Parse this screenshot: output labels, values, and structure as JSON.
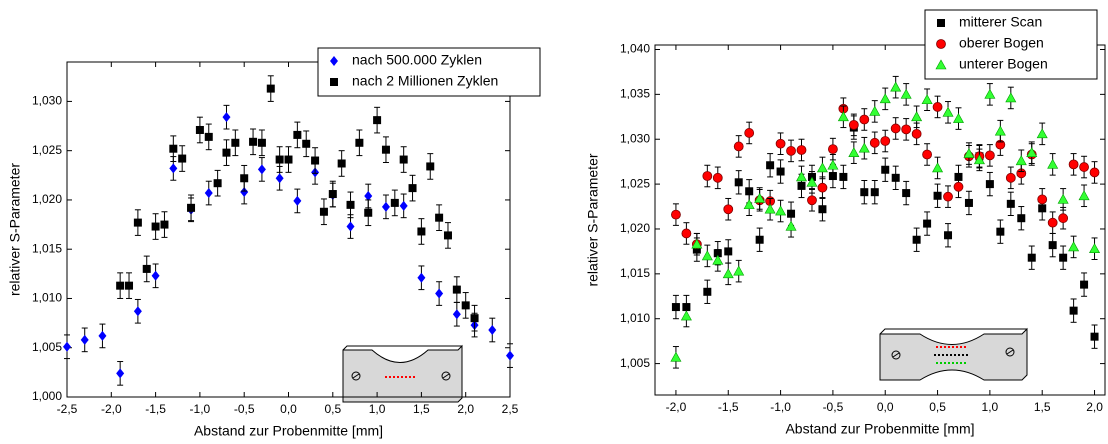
{
  "chart_data": [
    {
      "type": "scatter",
      "xlabel": "Abstand zur Probenmitte [mm]",
      "ylabel": "relativer S-Parameter",
      "xlim": [
        -2.5,
        2.5
      ],
      "ylim": [
        1.0,
        1.034
      ],
      "xticks": [
        {
          "value": -2.5,
          "label": "-2,5"
        },
        {
          "value": -2.0,
          "label": "-2,0"
        },
        {
          "value": -1.5,
          "label": "-1,5"
        },
        {
          "value": -1.0,
          "label": "-1,0"
        },
        {
          "value": -0.5,
          "label": "-0,5"
        },
        {
          "value": 0.0,
          "label": "0,0"
        },
        {
          "value": 0.5,
          "label": "0,5"
        },
        {
          "value": 1.0,
          "label": "1,0"
        },
        {
          "value": 1.5,
          "label": "1,5"
        },
        {
          "value": 2.0,
          "label": "2,0"
        },
        {
          "value": 2.5,
          "label": "2,5"
        }
      ],
      "yticks": [
        {
          "value": 1.0,
          "label": "1,000"
        },
        {
          "value": 1.005,
          "label": "1,005"
        },
        {
          "value": 1.01,
          "label": "1,010"
        },
        {
          "value": 1.015,
          "label": "1,015"
        },
        {
          "value": 1.02,
          "label": "1,020"
        },
        {
          "value": 1.025,
          "label": "1,025"
        },
        {
          "value": 1.03,
          "label": "1,030"
        }
      ],
      "legend": "upper right",
      "series": [
        {
          "name": "nach 500.000 Zyklen",
          "color": "#0000ff",
          "marker": "diamond",
          "error": 0.0012,
          "x": [
            -2.5,
            -2.3,
            -2.1,
            -1.9,
            -1.7,
            -1.5,
            -1.3,
            -1.1,
            -0.9,
            -0.7,
            -0.5,
            -0.3,
            -0.1,
            0.1,
            0.3,
            0.5,
            0.7,
            0.9,
            1.1,
            1.3,
            1.5,
            1.7,
            1.9,
            2.1,
            2.3,
            2.5
          ],
          "values": [
            1.0051,
            1.0058,
            1.0062,
            1.0024,
            1.0087,
            1.0123,
            1.0232,
            1.019,
            1.0207,
            1.0284,
            1.0208,
            1.0231,
            1.0222,
            1.0199,
            1.0228,
            1.0205,
            1.0173,
            1.0204,
            1.0193,
            1.0194,
            1.0121,
            1.0105,
            1.0084,
            1.0073,
            1.0068,
            1.0042
          ]
        },
        {
          "name": "nach 2 Millionen Zyklen",
          "color": "#000000",
          "marker": "square",
          "error": 0.0013,
          "x": [
            -1.9,
            -1.8,
            -1.7,
            -1.6,
            -1.5,
            -1.4,
            -1.3,
            -1.2,
            -1.1,
            -1.0,
            -0.9,
            -0.8,
            -0.7,
            -0.6,
            -0.5,
            -0.4,
            -0.3,
            -0.2,
            -0.1,
            0.0,
            0.1,
            0.2,
            0.3,
            0.4,
            0.5,
            0.6,
            0.7,
            0.8,
            0.9,
            1.0,
            1.1,
            1.2,
            1.3,
            1.4,
            1.5,
            1.6,
            1.7,
            1.8,
            1.9,
            2.0,
            2.1
          ],
          "values": [
            1.0113,
            1.0113,
            1.0177,
            1.013,
            1.0173,
            1.0175,
            1.0252,
            1.0242,
            1.0192,
            1.0271,
            1.0264,
            1.0217,
            1.0248,
            1.0258,
            1.0222,
            1.0259,
            1.0258,
            1.0313,
            1.0241,
            1.0241,
            1.0266,
            1.0257,
            1.024,
            1.0188,
            1.0206,
            1.0237,
            1.0195,
            1.0258,
            1.0187,
            1.0281,
            1.0251,
            1.0197,
            1.0241,
            1.0212,
            1.0168,
            1.0234,
            1.0182,
            1.0164,
            1.0109,
            1.0093,
            1.008
          ]
        }
      ]
    },
    {
      "type": "scatter",
      "xlabel": "Abstand zur Probenmitte [mm]",
      "ylabel": "relativer S-Parameter",
      "xlim": [
        -2.2,
        2.1
      ],
      "ylim": [
        1.0015,
        1.0405
      ],
      "xticks": [
        {
          "value": -2.0,
          "label": "-2,0"
        },
        {
          "value": -1.5,
          "label": "-1,5"
        },
        {
          "value": -1.0,
          "label": "-1,0"
        },
        {
          "value": -0.5,
          "label": "-0,5"
        },
        {
          "value": 0.0,
          "label": "0,0"
        },
        {
          "value": 0.5,
          "label": "0,5"
        },
        {
          "value": 1.0,
          "label": "1,0"
        },
        {
          "value": 1.5,
          "label": "1,5"
        },
        {
          "value": 2.0,
          "label": "2,0"
        }
      ],
      "yticks": [
        {
          "value": 1.005,
          "label": "1,005"
        },
        {
          "value": 1.01,
          "label": "1,010"
        },
        {
          "value": 1.015,
          "label": "1,015"
        },
        {
          "value": 1.02,
          "label": "1,020"
        },
        {
          "value": 1.025,
          "label": "1,025"
        },
        {
          "value": 1.03,
          "label": "1,030"
        },
        {
          "value": 1.035,
          "label": "1,035"
        },
        {
          "value": 1.04,
          "label": "1,040"
        }
      ],
      "legend": "upper right",
      "series": [
        {
          "name": "mitterer Scan",
          "color": "#000000",
          "marker": "square",
          "error": 0.0013,
          "x": [
            -2.0,
            -1.9,
            -1.8,
            -1.7,
            -1.6,
            -1.5,
            -1.4,
            -1.3,
            -1.2,
            -1.1,
            -1.0,
            -0.9,
            -0.8,
            -0.7,
            -0.6,
            -0.5,
            -0.4,
            -0.3,
            -0.2,
            -0.1,
            0.0,
            0.1,
            0.2,
            0.3,
            0.4,
            0.5,
            0.6,
            0.7,
            0.8,
            0.9,
            1.0,
            1.1,
            1.2,
            1.3,
            1.4,
            1.5,
            1.6,
            1.7,
            1.8,
            1.9,
            2.0
          ],
          "values": [
            1.0113,
            1.0113,
            1.0177,
            1.013,
            1.0173,
            1.0175,
            1.0252,
            1.0242,
            1.0188,
            1.0271,
            1.0264,
            1.0217,
            1.0248,
            1.0258,
            1.0222,
            1.0259,
            1.0258,
            1.0313,
            1.0241,
            1.0241,
            1.0266,
            1.0257,
            1.024,
            1.0188,
            1.0206,
            1.0237,
            1.0193,
            1.0258,
            1.0229,
            1.0281,
            1.025,
            1.0197,
            1.0228,
            1.0212,
            1.0168,
            1.0223,
            1.0182,
            1.0168,
            1.0109,
            1.0138,
            1.008
          ]
        },
        {
          "name": "oberer Bogen",
          "color": "#ff0000",
          "marker": "circle",
          "error": 0.0012,
          "x": [
            -2.0,
            -1.9,
            -1.8,
            -1.7,
            -1.6,
            -1.5,
            -1.4,
            -1.3,
            -1.2,
            -1.1,
            -1.0,
            -0.9,
            -0.8,
            -0.7,
            -0.6,
            -0.5,
            -0.4,
            -0.3,
            -0.2,
            -0.1,
            0.0,
            0.1,
            0.2,
            0.3,
            0.4,
            0.5,
            0.6,
            0.7,
            0.8,
            0.9,
            1.0,
            1.1,
            1.2,
            1.3,
            1.4,
            1.5,
            1.6,
            1.7,
            1.8,
            1.9,
            2.0
          ],
          "values": [
            1.0216,
            1.0195,
            1.0183,
            1.0259,
            1.0257,
            1.0222,
            1.0292,
            1.0307,
            1.0232,
            1.0231,
            1.0295,
            1.0287,
            1.0288,
            1.0232,
            1.0246,
            1.0289,
            1.0334,
            1.0316,
            1.0322,
            1.0296,
            1.0298,
            1.0312,
            1.0311,
            1.0306,
            1.0283,
            1.0336,
            1.0236,
            1.0247,
            1.0281,
            1.0281,
            1.0282,
            1.0294,
            1.0257,
            1.0262,
            1.0283,
            1.0233,
            1.0207,
            1.0212,
            1.0272,
            1.0269,
            1.0263
          ]
        },
        {
          "name": "unterer Bogen",
          "color": "#33ff33",
          "marker": "triangle",
          "error": 0.0012,
          "x": [
            -2.0,
            -1.9,
            -1.8,
            -1.7,
            -1.6,
            -1.5,
            -1.4,
            -1.3,
            -1.2,
            -1.1,
            -1.0,
            -0.9,
            -0.8,
            -0.7,
            -0.6,
            -0.5,
            -0.4,
            -0.3,
            -0.2,
            -0.1,
            0.0,
            0.1,
            0.2,
            0.3,
            0.4,
            0.5,
            0.6,
            0.7,
            0.8,
            0.9,
            1.0,
            1.1,
            1.2,
            1.3,
            1.4,
            1.5,
            1.6,
            1.7,
            1.8,
            1.9,
            2.0
          ],
          "values": [
            1.0057,
            1.0103,
            1.0183,
            1.017,
            1.0165,
            1.015,
            1.0153,
            1.0227,
            1.0234,
            1.0222,
            1.022,
            1.0203,
            1.0258,
            1.0252,
            1.0268,
            1.0271,
            1.0325,
            1.0285,
            1.029,
            1.0331,
            1.0345,
            1.0358,
            1.035,
            1.0325,
            1.0344,
            1.0268,
            1.033,
            1.0323,
            1.0284,
            1.0277,
            1.035,
            1.0309,
            1.0346,
            1.0276,
            1.0285,
            1.0306,
            1.0272,
            1.0233,
            1.018,
            1.0237,
            1.0178
          ]
        }
      ]
    }
  ]
}
